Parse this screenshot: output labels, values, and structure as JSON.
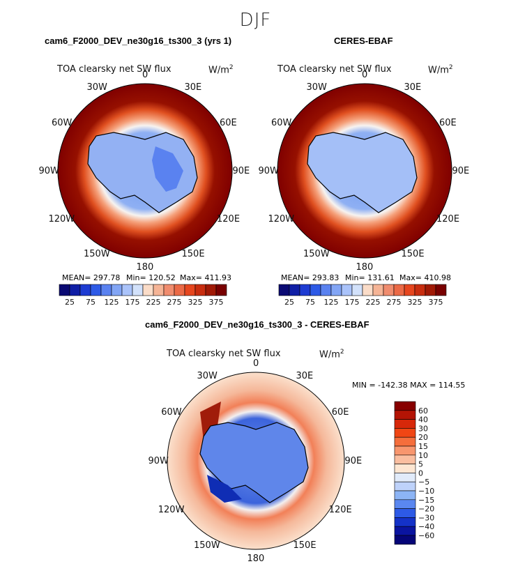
{
  "season": "DJF",
  "variable": "TOA clearsky net SW flux",
  "units": "W/m",
  "units_exp": "2",
  "lon_labels": [
    "0",
    "30E",
    "60E",
    "90E",
    "120E",
    "150E",
    "180",
    "150W",
    "120W",
    "90W",
    "60W",
    "30W"
  ],
  "panels": [
    {
      "title": "cam6_F2000_DEV_ne30g16_ts300_3 (yrs 1)",
      "stats": {
        "mean": "MEAN= 297.78",
        "min": "Min= 120.52",
        "max": "Max= 411.93"
      }
    },
    {
      "title": "CERES-EBAF",
      "stats": {
        "mean": "MEAN= 293.83",
        "min": "Min= 131.61",
        "max": "Max= 410.98"
      }
    }
  ],
  "abs_colorbar": {
    "tick_labels": [
      "25",
      "75",
      "125",
      "175",
      "225",
      "275",
      "325",
      "375"
    ],
    "colors": [
      "#0a0a73",
      "#0f1ea5",
      "#1e3cd2",
      "#2d5ae6",
      "#5a82f0",
      "#82a5f5",
      "#aac3fa",
      "#d2e1fa",
      "#fadcc8",
      "#f5b496",
      "#f08c6e",
      "#eb6946",
      "#e6461e",
      "#c82d0f",
      "#a01905",
      "#780000"
    ]
  },
  "diff": {
    "title": "cam6_F2000_DEV_ne30g16_ts300_3 - CERES-EBAF",
    "minmax": "MIN = -142.38  MAX = 114.55",
    "colorbar": {
      "tick_labels": [
        "60",
        "40",
        "30",
        "20",
        "15",
        "10",
        "5",
        "0",
        "−5",
        "−10",
        "−15",
        "−20",
        "−30",
        "−40",
        "−60"
      ],
      "colors": [
        "#870000",
        "#b41405",
        "#d7280a",
        "#f04614",
        "#f56e3c",
        "#f8966e",
        "#fabea0",
        "#fde6d2",
        "#e1ebfa",
        "#bed2fa",
        "#8cb4f5",
        "#5a87f0",
        "#2d5ae6",
        "#1432c8",
        "#0a14a0",
        "#050578"
      ]
    }
  }
}
